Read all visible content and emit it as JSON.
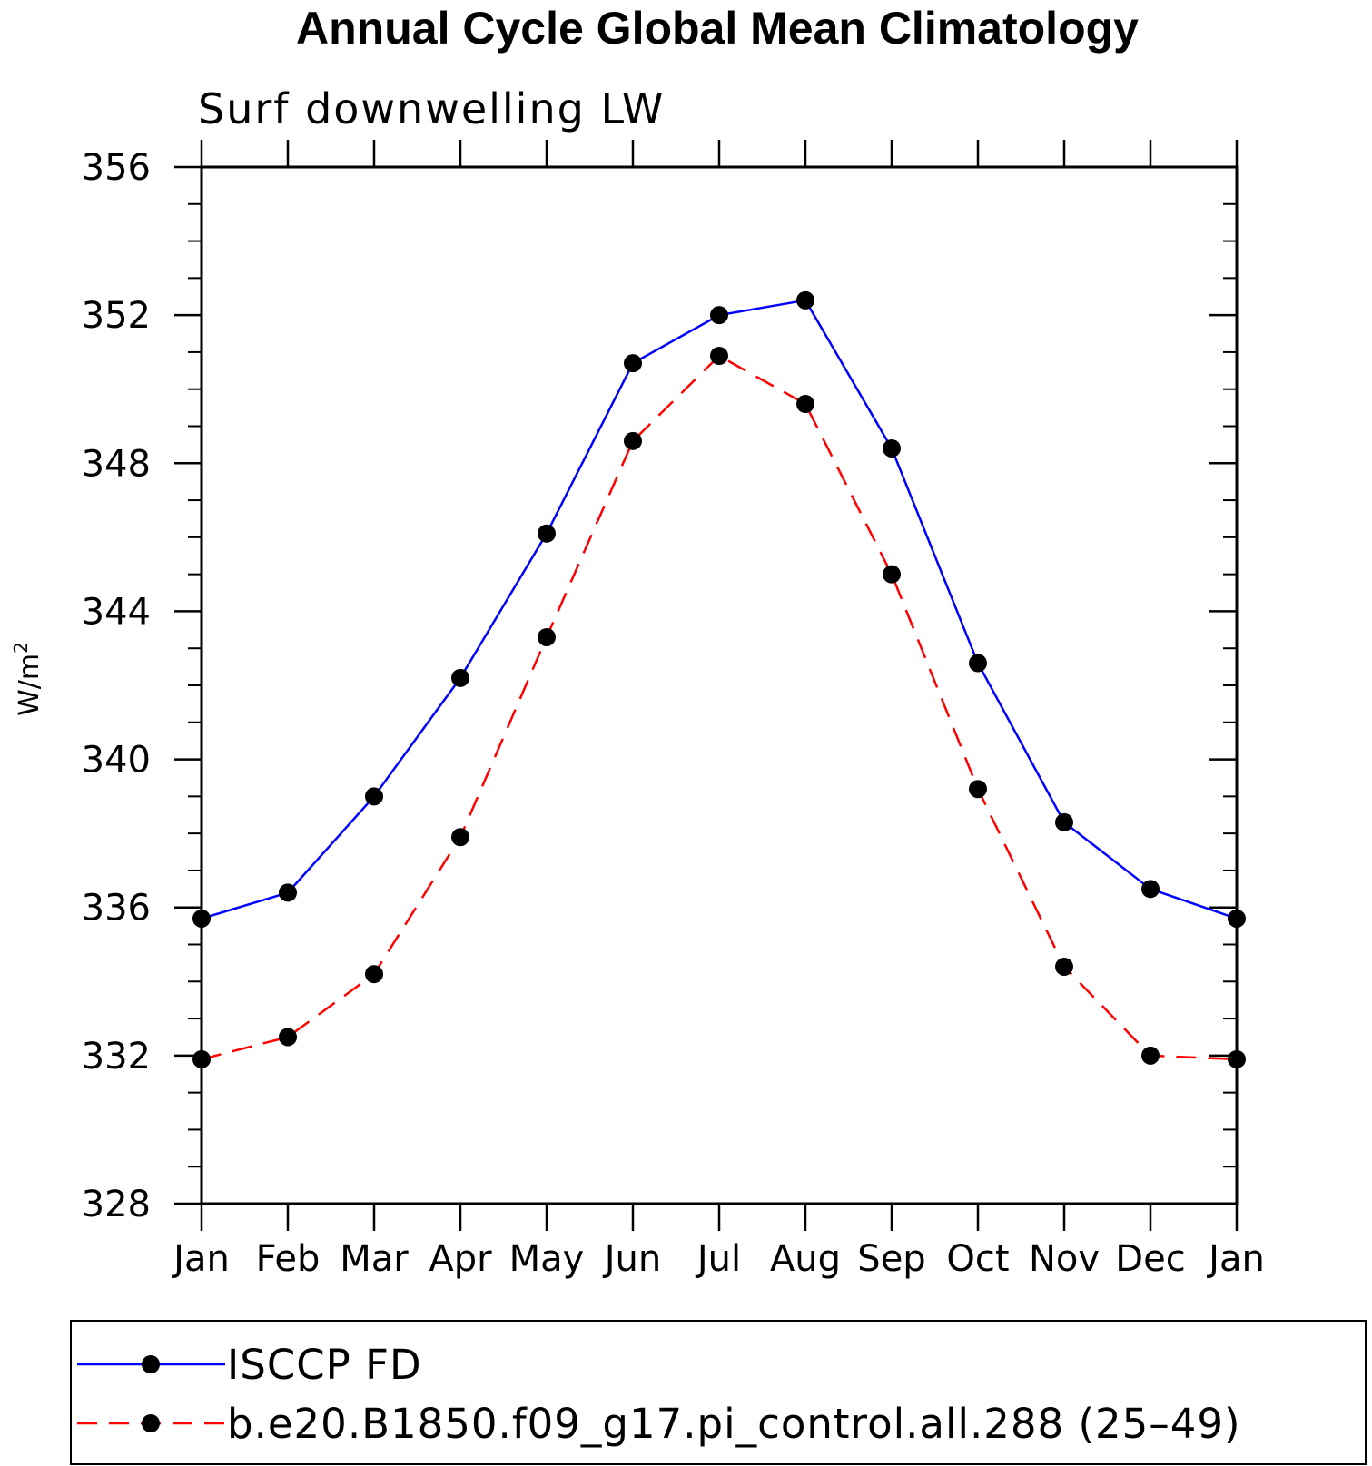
{
  "chart_data": {
    "type": "line",
    "title": "Annual Cycle Global Mean Climatology",
    "subtitle": "Surf downwelling LW",
    "ylabel": "W/m",
    "ylabel_sup": "2",
    "xlabel": "",
    "categories": [
      "Jan",
      "Feb",
      "Mar",
      "Apr",
      "May",
      "Jun",
      "Jul",
      "Aug",
      "Sep",
      "Oct",
      "Nov",
      "Dec",
      "Jan"
    ],
    "ylim": [
      328,
      356
    ],
    "yticks": [
      328,
      332,
      336,
      340,
      344,
      348,
      352,
      356
    ],
    "y_minor_step": 1,
    "grid": false,
    "legend_position": "bottom",
    "series": [
      {
        "name": "ISCCP FD",
        "color": "#0000ff",
        "line_style": "solid",
        "marker": "filled-circle",
        "values": [
          335.7,
          336.4,
          339.0,
          342.2,
          346.1,
          350.7,
          352.0,
          352.4,
          348.4,
          342.6,
          338.3,
          336.5,
          335.7
        ]
      },
      {
        "name": "b.e20.B1850.f09_g17.pi_control.all.288 (25–49)",
        "color": "#ff0000",
        "line_style": "dashed",
        "marker": "filled-circle",
        "values": [
          331.9,
          332.5,
          334.2,
          337.9,
          343.3,
          348.6,
          350.9,
          349.6,
          345.0,
          339.2,
          334.4,
          332.0,
          331.9
        ]
      }
    ]
  }
}
